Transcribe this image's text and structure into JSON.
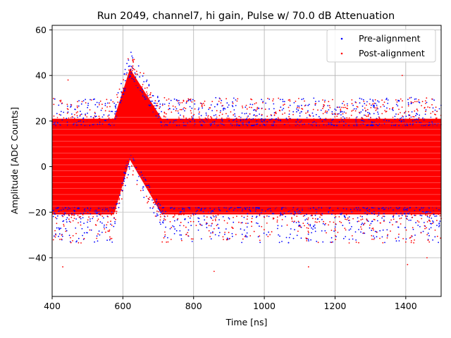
{
  "chart_data": {
    "type": "scatter",
    "title": "Run 2049, channel7, hi gain, Pulse w/ 70.0 dB Attenuation",
    "xlabel": "Time [ns]",
    "ylabel": "Amplitude [ADC Counts]",
    "xlim": [
      400,
      1500
    ],
    "ylim": [
      -57,
      62
    ],
    "xticks": [
      400,
      600,
      800,
      1000,
      1200,
      1400
    ],
    "yticks": [
      -40,
      -20,
      0,
      20,
      40,
      60
    ],
    "xtick_labels": [
      "400",
      "600",
      "800",
      "1000",
      "1200",
      "1400"
    ],
    "ytick_labels": [
      "−40",
      "−20",
      "0",
      "20",
      "40",
      "60"
    ],
    "grid": true,
    "legend_position": "top-right",
    "series": [
      {
        "name": "Pre-alignment",
        "color": "#0000ff",
        "marker": "dot",
        "band": {
          "baseline_upper": 21,
          "baseline_lower": -21,
          "outlier_max": 38,
          "outlier_min": -49
        },
        "pulse": {
          "peak_time_ns": 620,
          "peak_upper": 51,
          "peak_lower_min": 3,
          "start_ns": 575,
          "end_ns": 710
        }
      },
      {
        "name": "Post-alignment",
        "color": "#ff0000",
        "marker": "dot",
        "band": {
          "baseline_upper": 21,
          "baseline_lower": -21,
          "outlier_max": 38,
          "outlier_min": -49
        },
        "pulse": {
          "peak_time_ns": 620,
          "peak_upper": 51,
          "peak_lower_min": 3,
          "start_ns": 575,
          "end_ns": 710
        }
      }
    ]
  }
}
